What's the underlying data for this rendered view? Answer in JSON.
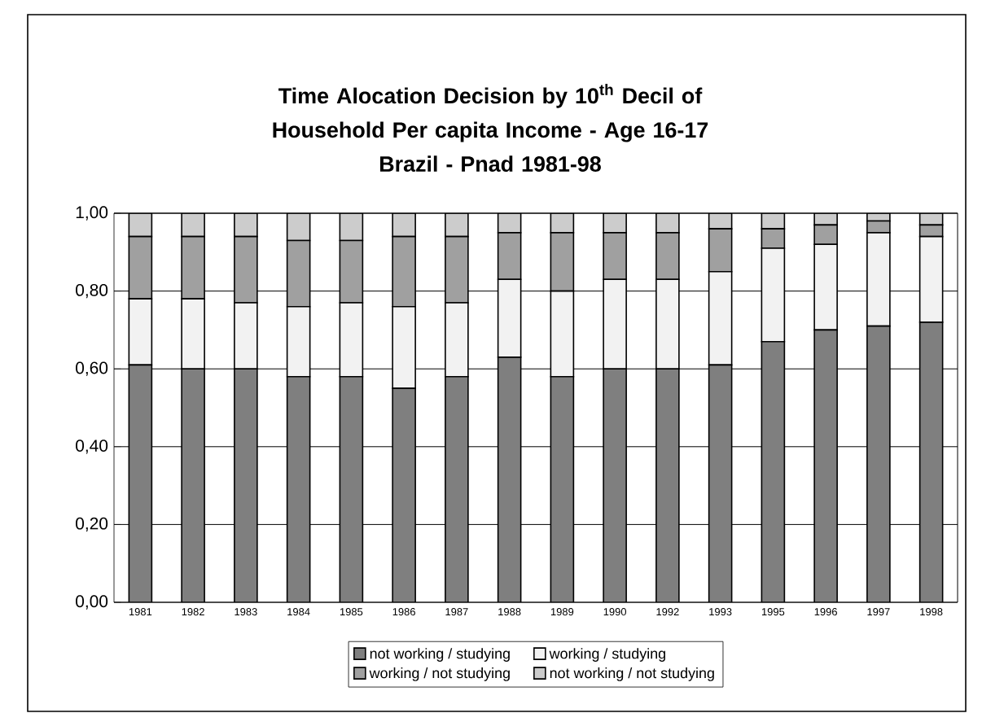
{
  "chart_data": {
    "type": "bar",
    "title": "Time Alocation Decision by 10$^{th}$ Decil of Household Per capita Income - Age 16-17",
    "subtitle": "Brazil - Pnad 1981-98",
    "categories": [
      "1981",
      "1982",
      "1983",
      "1984",
      "1985",
      "1986",
      "1987",
      "1988",
      "1989",
      "1990",
      "1992",
      "1993",
      "1995",
      "1996",
      "1997",
      "1998"
    ],
    "stacked": true,
    "series": [
      {
        "name": "not working / studying",
        "color": "#7f7f7f",
        "values": [
          0.61,
          0.6,
          0.6,
          0.58,
          0.58,
          0.55,
          0.58,
          0.63,
          0.58,
          0.6,
          0.6,
          0.61,
          0.67,
          0.7,
          0.71,
          0.72
        ]
      },
      {
        "name": "working / studying",
        "color": "#f2f2f2",
        "values": [
          0.17,
          0.18,
          0.17,
          0.18,
          0.19,
          0.21,
          0.19,
          0.2,
          0.22,
          0.23,
          0.23,
          0.24,
          0.24,
          0.22,
          0.24,
          0.22
        ]
      },
      {
        "name": "working / not studying",
        "color": "#a0a0a0",
        "values": [
          0.16,
          0.16,
          0.17,
          0.17,
          0.16,
          0.18,
          0.17,
          0.12,
          0.15,
          0.12,
          0.12,
          0.11,
          0.05,
          0.05,
          0.03,
          0.03
        ]
      },
      {
        "name": "not working / not studying",
        "color": "#cccccc",
        "values": [
          0.06,
          0.06,
          0.06,
          0.07,
          0.07,
          0.06,
          0.06,
          0.05,
          0.05,
          0.05,
          0.05,
          0.04,
          0.04,
          0.03,
          0.02,
          0.03
        ]
      }
    ],
    "ylim": [
      0,
      1
    ],
    "yticks": [
      {
        "value": 0,
        "label": "0,00"
      },
      {
        "value": 0.2,
        "label": "0,20"
      },
      {
        "value": 0.4,
        "label": "0,40"
      },
      {
        "value": 0.6,
        "label": "0,60"
      },
      {
        "value": 0.8,
        "label": "0,80"
      },
      {
        "value": 1,
        "label": "1,00"
      }
    ],
    "grid": "y",
    "legend": "bottom"
  }
}
